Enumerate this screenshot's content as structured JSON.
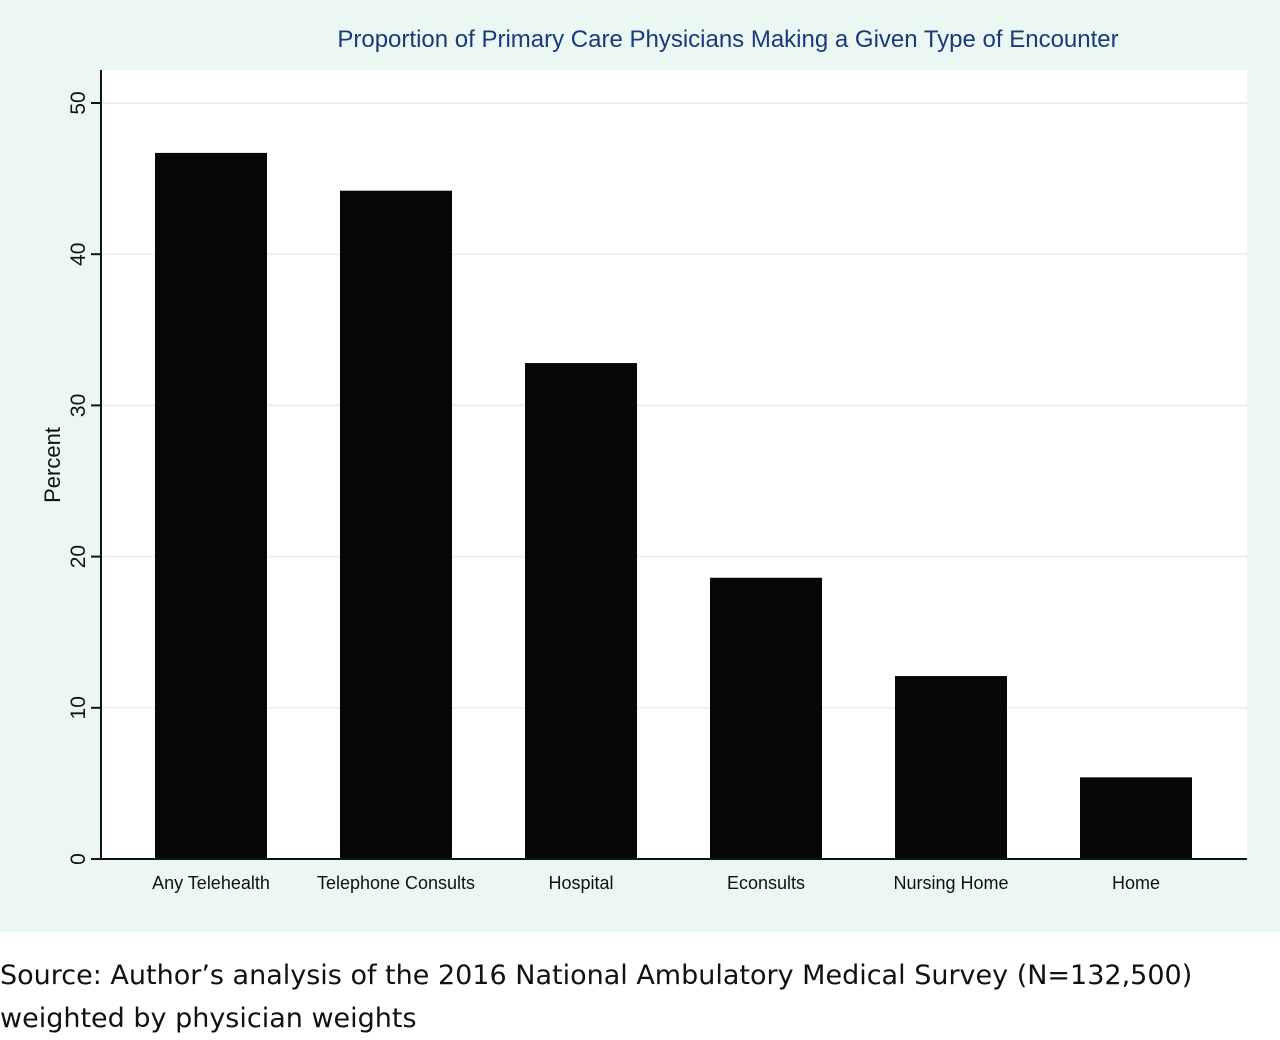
{
  "chart_data": {
    "type": "bar",
    "title": "Proportion of Primary Care Physicians Making a Given Type of Encounter",
    "xlabel": "",
    "ylabel": "Percent",
    "ylim": [
      0,
      52
    ],
    "yticks": [
      0,
      10,
      20,
      30,
      40,
      50
    ],
    "ytick_labels": [
      "0",
      "10",
      "20",
      "30",
      "40",
      "50"
    ],
    "grid": true,
    "categories": [
      "Any Telehealth",
      "Telephone Consults",
      "Hospital",
      "Econsults",
      "Nursing Home",
      "Home"
    ],
    "values": [
      46.7,
      44.2,
      32.8,
      18.6,
      12.1,
      5.4
    ],
    "colors": {
      "bar": "#060806",
      "panel_background": "#eaf7f3",
      "plot_background": "#ffffff",
      "title": "#1b3a7a",
      "grid": "#e6f3ef"
    }
  },
  "caption": {
    "line1": "Source: Author’s analysis of the 2016 National Ambulatory Medical Survey (N=132,500)",
    "line2": "weighted by physician weights"
  }
}
